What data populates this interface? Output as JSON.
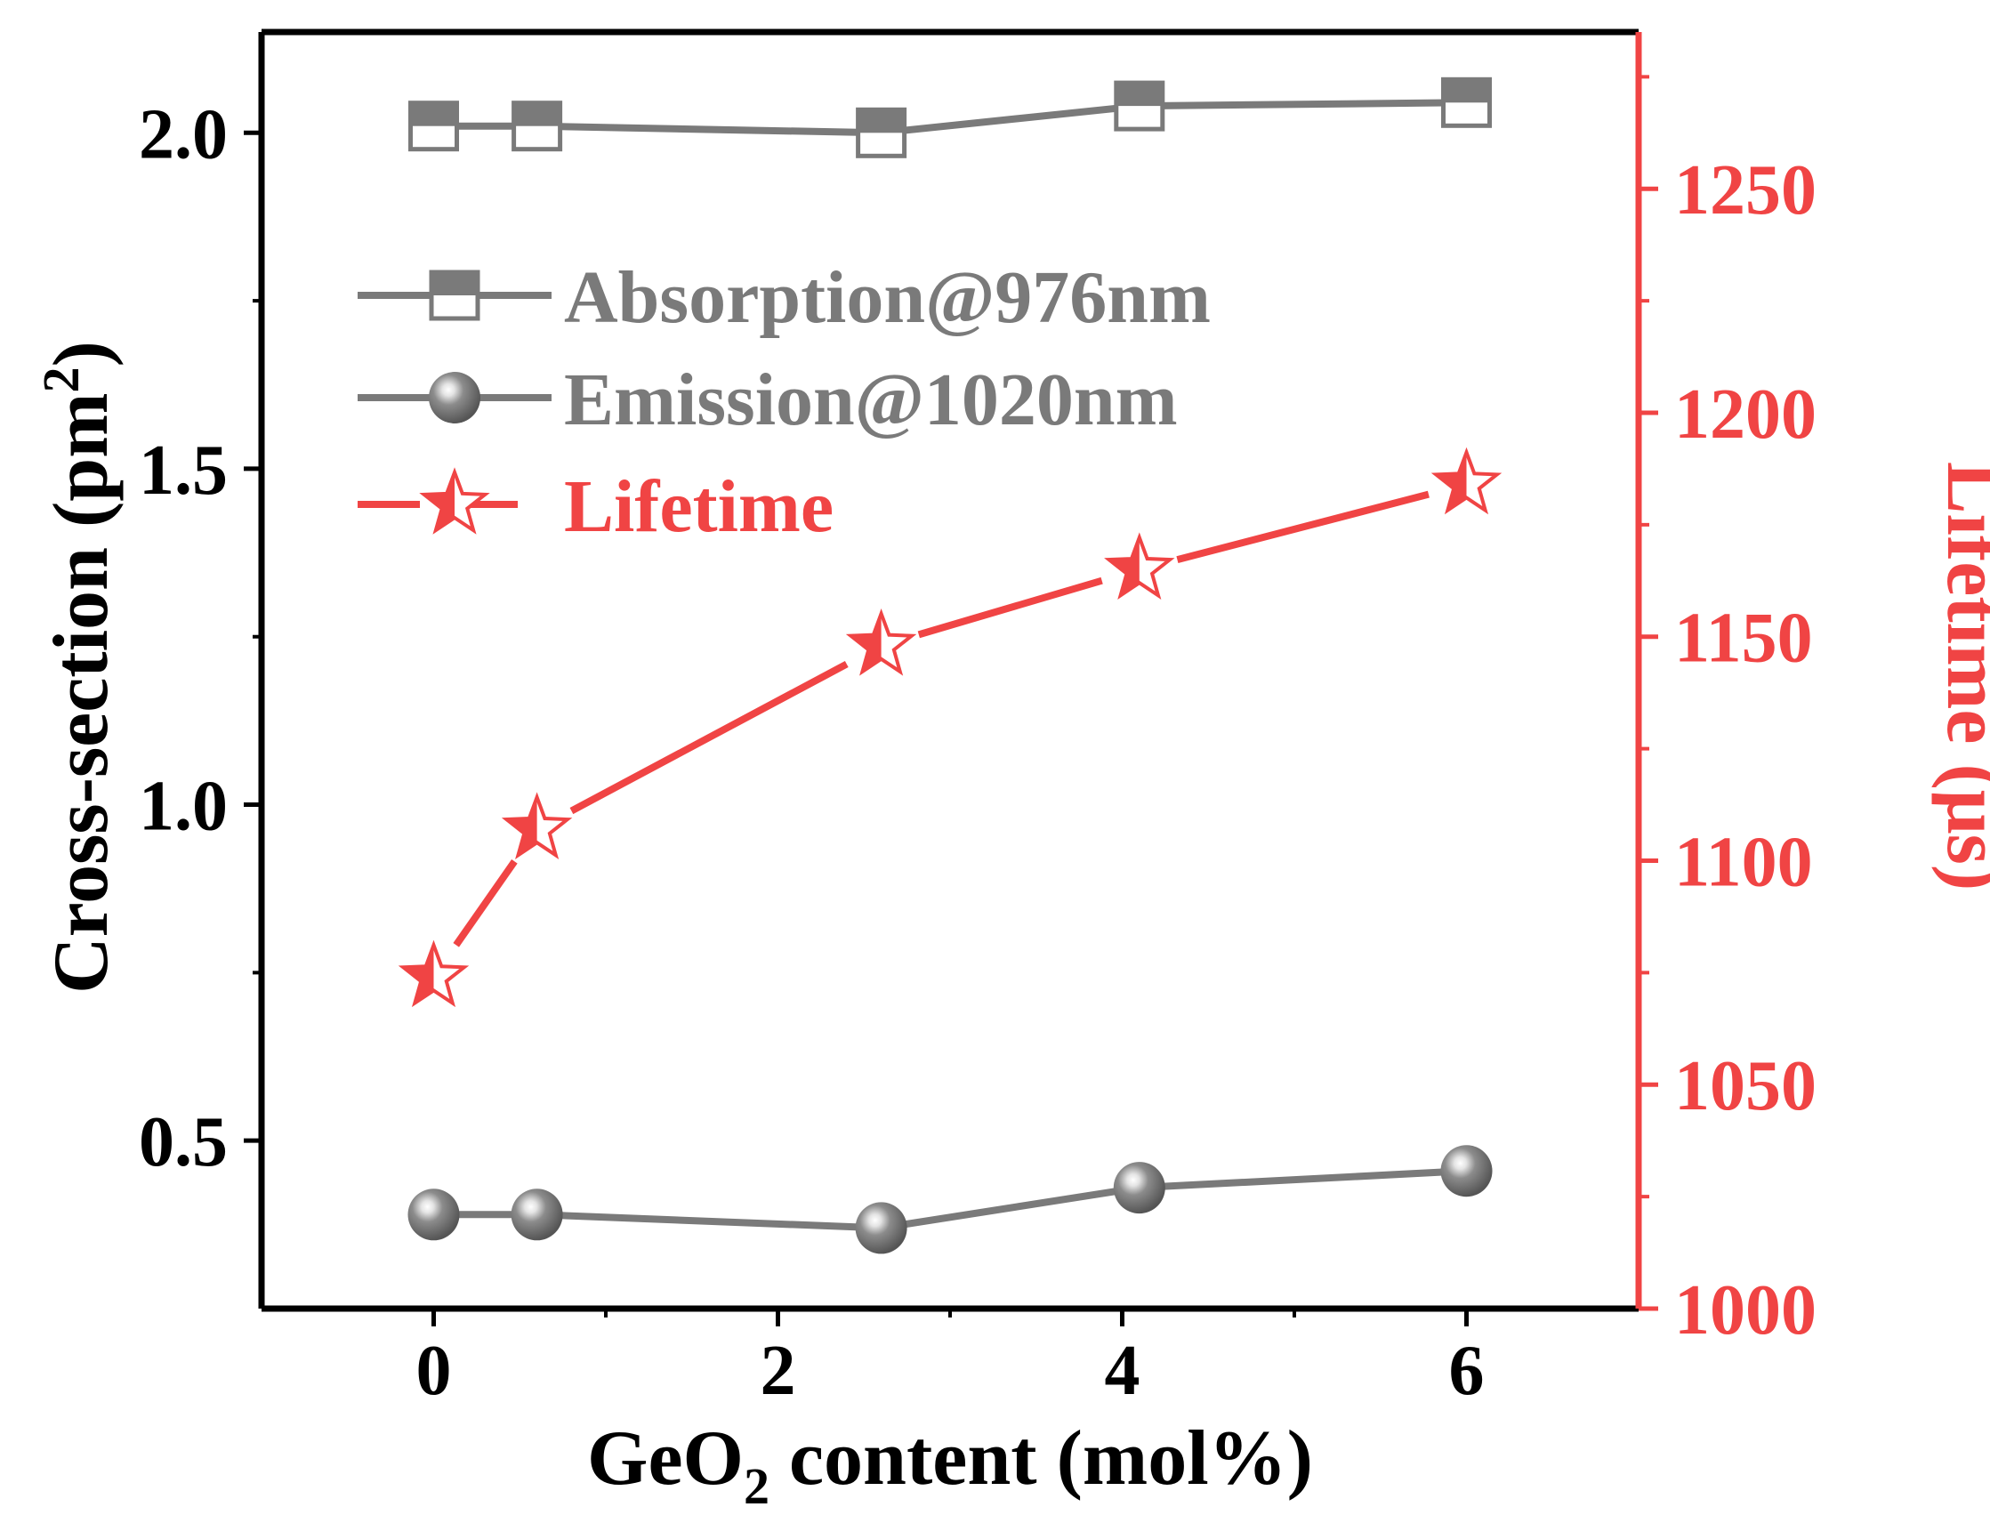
{
  "chart_data": {
    "type": "line",
    "title": "",
    "xlabel": {
      "main": "GeO",
      "sub": "2",
      "rest": " content (mol%)"
    },
    "ylabel_left": {
      "main": "Cross-section (pm",
      "sup": "2",
      "close": ")"
    },
    "ylabel_right": "Lifetime (μs)",
    "xlim": [
      -1,
      7
    ],
    "ylim_left": [
      0.25,
      2.15
    ],
    "ylim_right": [
      1000,
      1285
    ],
    "x_ticks": [
      0,
      2,
      4,
      6
    ],
    "x_tick_labels": [
      "0",
      "2",
      "4",
      "6"
    ],
    "y_left_ticks": [
      0.5,
      1.0,
      1.5,
      2.0
    ],
    "y_left_tick_labels": [
      "0.5",
      "1.0",
      "1.5",
      "2.0"
    ],
    "y_right_ticks": [
      1000,
      1050,
      1100,
      1150,
      1200,
      1250
    ],
    "y_right_tick_labels": [
      "1000",
      "1050",
      "1100",
      "1150",
      "1200",
      "1250"
    ],
    "colors": {
      "gray": "#7a7a7a",
      "red": "#f04444",
      "axis": "#000000"
    },
    "series": [
      {
        "name": "Absorption@976nm",
        "axis": "left",
        "marker": "half-filled-square",
        "color": "#7a7a7a",
        "x": [
          0,
          0.6,
          2.6,
          4.1,
          6
        ],
        "y": [
          2.01,
          2.01,
          2.0,
          2.04,
          2.045
        ]
      },
      {
        "name": "Emission@1020nm",
        "axis": "left",
        "marker": "sphere",
        "color": "#7a7a7a",
        "x": [
          0,
          0.6,
          2.6,
          4.1,
          6
        ],
        "y": [
          0.39,
          0.39,
          0.37,
          0.43,
          0.455
        ]
      },
      {
        "name": "Lifetime",
        "axis": "right",
        "marker": "half-filled-star",
        "color": "#f04444",
        "x": [
          0,
          0.6,
          2.6,
          4.1,
          6
        ],
        "y": [
          1074,
          1107,
          1148,
          1165,
          1184
        ]
      }
    ],
    "legend": {
      "position": "top-left",
      "entries": [
        "Absorption@976nm",
        "Emission@1020nm",
        "Lifetime"
      ]
    }
  }
}
